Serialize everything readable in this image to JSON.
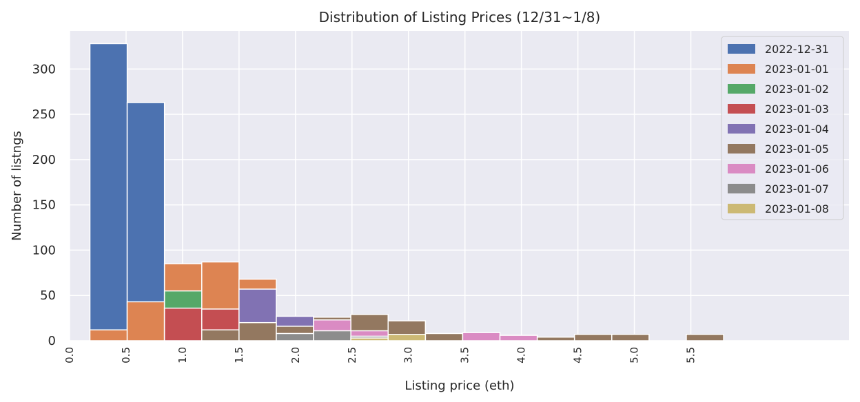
{
  "chart_data": {
    "type": "bar",
    "title": "Distribution of Listing Prices (12/31~1/8)",
    "xlabel": "Listing price (eth)",
    "ylabel": "Number of listngs",
    "xlim": [
      0.0,
      6.9
    ],
    "ylim": [
      0,
      342
    ],
    "xticks": [
      "0.0",
      "0.5",
      "1.0",
      "1.5",
      "2.0",
      "2.5",
      "3.0",
      "3.5",
      "4.0",
      "4.5",
      "5.0",
      "5.5"
    ],
    "yticks": [
      "0",
      "50",
      "100",
      "150",
      "200",
      "250",
      "300"
    ],
    "grid": true,
    "legend_position": "top-right",
    "bin_edges": [
      0.18,
      0.51,
      0.84,
      1.17,
      1.5,
      1.83,
      2.16,
      2.49,
      2.82,
      3.15,
      3.48,
      3.81,
      4.14,
      4.47,
      4.8,
      5.13,
      5.46,
      5.79,
      6.12,
      6.45,
      6.78,
      6.9
    ],
    "series": [
      {
        "name": "2022-12-31",
        "color": "#4c72b0",
        "values": [
          328,
          263,
          0,
          0,
          0,
          0,
          0,
          0,
          0,
          0,
          0,
          0,
          0,
          0,
          0,
          0,
          0,
          0,
          0,
          0,
          0
        ]
      },
      {
        "name": "2023-01-01",
        "color": "#dd8452",
        "values": [
          12,
          43,
          85,
          87,
          68,
          0,
          0,
          0,
          0,
          0,
          0,
          0,
          0,
          0,
          0,
          0,
          0,
          0,
          0,
          0,
          0
        ]
      },
      {
        "name": "2023-01-02",
        "color": "#55a868",
        "values": [
          0,
          0,
          55,
          0,
          0,
          0,
          0,
          0,
          0,
          0,
          0,
          0,
          0,
          0,
          0,
          0,
          0,
          0,
          0,
          0,
          0
        ]
      },
      {
        "name": "2023-01-03",
        "color": "#c44e52",
        "values": [
          0,
          0,
          36,
          35,
          0,
          0,
          0,
          0,
          0,
          0,
          0,
          0,
          0,
          0,
          0,
          0,
          0,
          0,
          0,
          0,
          0
        ]
      },
      {
        "name": "2023-01-04",
        "color": "#8172b3",
        "values": [
          0,
          0,
          0,
          0,
          57,
          27,
          0,
          0,
          0,
          0,
          0,
          0,
          0,
          0,
          0,
          0,
          0,
          0,
          0,
          0,
          0
        ]
      },
      {
        "name": "2023-01-05",
        "color": "#937860",
        "values": [
          0,
          0,
          0,
          12,
          20,
          16,
          26,
          29,
          22,
          8,
          0,
          0,
          4,
          7,
          7,
          0,
          7,
          0,
          0,
          0,
          0
        ]
      },
      {
        "name": "2023-01-06",
        "color": "#da8bc3",
        "values": [
          0,
          0,
          0,
          0,
          0,
          0,
          23,
          11,
          0,
          0,
          9,
          6,
          0,
          0,
          0,
          0,
          0,
          0,
          0,
          0,
          0
        ]
      },
      {
        "name": "2023-01-07",
        "color": "#8c8c8c",
        "values": [
          0,
          0,
          0,
          0,
          0,
          8,
          11,
          5,
          0,
          0,
          0,
          0,
          0,
          0,
          0,
          0,
          0,
          0,
          0,
          0,
          0
        ]
      },
      {
        "name": "2023-01-08",
        "color": "#ccb974",
        "values": [
          0,
          0,
          0,
          0,
          0,
          0,
          0,
          3,
          7,
          0,
          0,
          0,
          0,
          0,
          0,
          0,
          0,
          0,
          0,
          0,
          0
        ]
      }
    ]
  }
}
